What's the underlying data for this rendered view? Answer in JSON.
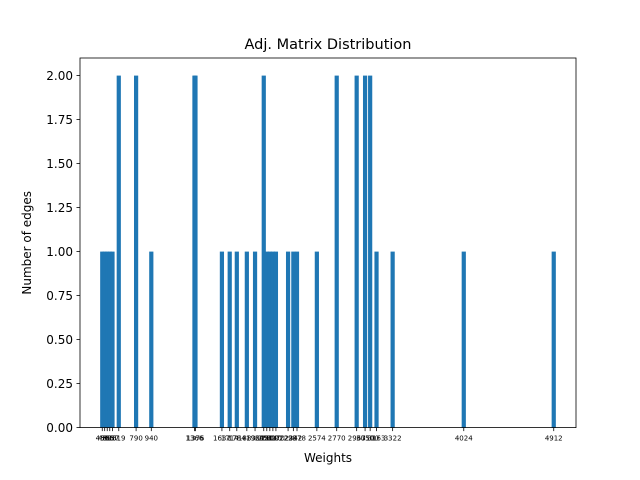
{
  "chart_data": {
    "type": "bar",
    "title": "Adj. Matrix Distribution",
    "xlabel": "Weights",
    "ylabel": "Number of edges",
    "ylim": [
      0,
      2.1
    ],
    "yticks": [
      "0.00",
      "0.25",
      "0.50",
      "0.75",
      "1.00",
      "1.25",
      "1.50",
      "1.75",
      "2.00"
    ],
    "grid": false,
    "bar_color": "#1f77b4",
    "x": [
      456,
      480,
      505,
      530,
      557,
      619,
      790,
      940,
      1366,
      1376,
      1637,
      1714,
      1784,
      1883,
      1964,
      2050,
      2080,
      2110,
      2140,
      2170,
      2290,
      2342,
      2378,
      2574,
      2770,
      2967,
      3050,
      3100,
      3163,
      3322,
      4024,
      4912
    ],
    "values": [
      1,
      1,
      1,
      1,
      1,
      2,
      2,
      1,
      2,
      2,
      1,
      1,
      1,
      1,
      1,
      2,
      1,
      1,
      1,
      1,
      1,
      1,
      1,
      1,
      2,
      2,
      2,
      2,
      1,
      1,
      1,
      1
    ],
    "xtick_labels": [
      "456",
      "480",
      "505",
      "530",
      "557",
      "619",
      "790",
      "940",
      "1366",
      "1376",
      "1637",
      "1714",
      "1784",
      "1883",
      "1964",
      "2050",
      "2080",
      "2110",
      "2140",
      "2170",
      "2290",
      "2342",
      "2378",
      "2574",
      "2770",
      "2967",
      "3050",
      "3100",
      "3163",
      "3322",
      "4024",
      "4912"
    ]
  }
}
